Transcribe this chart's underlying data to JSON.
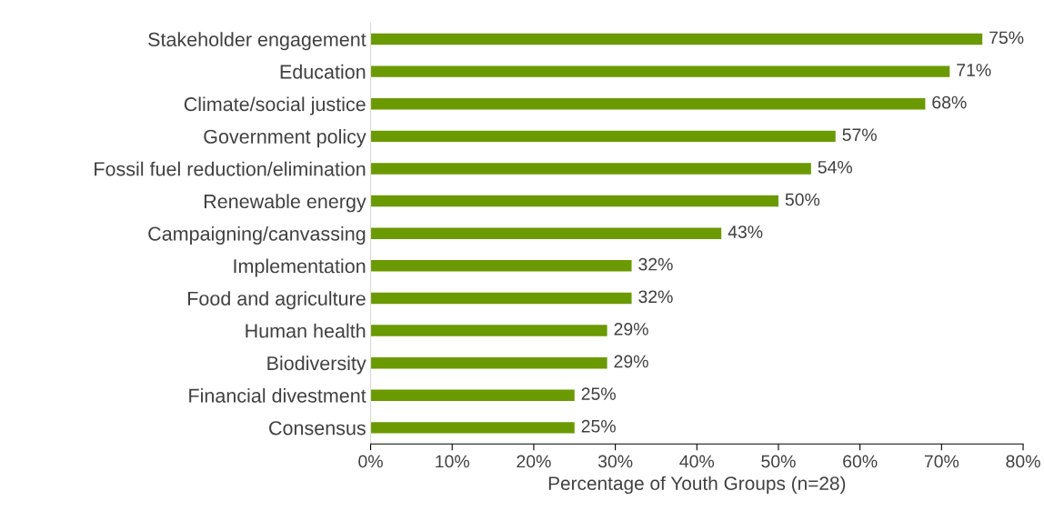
{
  "chart_data": {
    "type": "bar",
    "orientation": "horizontal",
    "xlabel": "Percentage of Youth Groups (n=28)",
    "categories": [
      "Stakeholder engagement",
      "Education",
      "Climate/social justice",
      "Government policy",
      "Fossil fuel reduction/elimination",
      "Renewable energy",
      "Campaigning/canvassing",
      "Implementation",
      "Food and agriculture",
      "Human health",
      "Biodiversity",
      "Financial divestment",
      "Consensus"
    ],
    "values": [
      75,
      71,
      68,
      57,
      54,
      50,
      43,
      32,
      32,
      29,
      29,
      25,
      25
    ],
    "value_labels": [
      "75%",
      "71%",
      "68%",
      "57%",
      "54%",
      "50%",
      "43%",
      "32%",
      "32%",
      "29%",
      "29%",
      "25%",
      "25%"
    ],
    "color": "#6a9a00",
    "xlim": [
      0,
      80
    ],
    "xticks": [
      {
        "value": 0,
        "label": "0%"
      },
      {
        "value": 10,
        "label": "10%"
      },
      {
        "value": 20,
        "label": "20%"
      },
      {
        "value": 30,
        "label": "30%"
      },
      {
        "value": 40,
        "label": "40%"
      },
      {
        "value": 50,
        "label": "50%"
      },
      {
        "value": 60,
        "label": "60%"
      },
      {
        "value": 70,
        "label": "70%"
      },
      {
        "value": 80,
        "label": "80%"
      }
    ],
    "grid": false,
    "legend": false
  }
}
